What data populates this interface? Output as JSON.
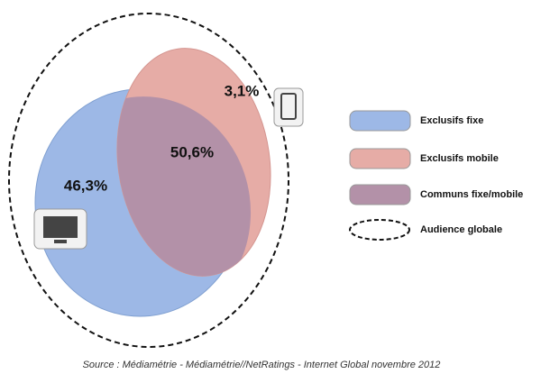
{
  "chart_data": {
    "type": "venn",
    "categories": [
      "Exclusifs fixe",
      "Exclusifs mobile",
      "Communs fixe/mobile"
    ],
    "values": [
      46.3,
      3.1,
      50.6
    ],
    "value_labels": [
      "46,3%",
      "3,1%",
      "50,6%"
    ],
    "colors": [
      "#9db8e6",
      "#e6aca6",
      "#b391a8"
    ],
    "outline_label": "Audience globale",
    "source": "Source : Médiamétrie - Médiamétrie//NetRatings - Internet Global novembre 2012"
  }
}
